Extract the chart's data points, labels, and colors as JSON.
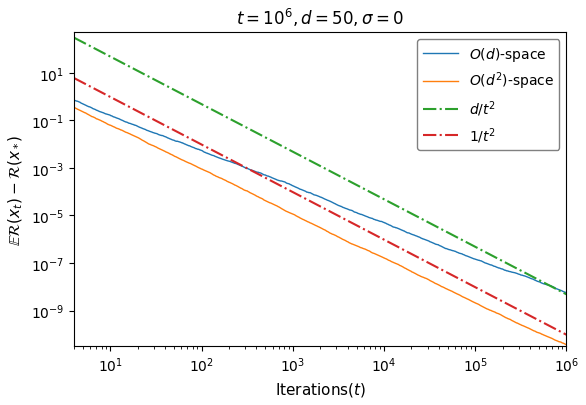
{
  "title": "$t = 10^6, d = 50, \\sigma = 0$",
  "xlabel": "Iterations$(t)$",
  "ylabel": "$\\mathbb{E}\\mathcal{R}(x_t) - \\mathcal{R}(x_*)$",
  "xlim_log": [
    0.602,
    6.0
  ],
  "ylim_log": [
    -10.5,
    2.7
  ],
  "d": 50,
  "t_max": 1000000,
  "t_start": 4,
  "n_points": 1000,
  "blue_color": "#1f77b4",
  "orange_color": "#ff7f0e",
  "green_color": "#2ca02c",
  "red_color": "#d62728",
  "noise_seed_blue": 42,
  "noise_seed_orange": 7,
  "noise_amplitude_blue": 0.3,
  "noise_amplitude_orange": 0.25,
  "C_green": 4800.0,
  "C_red": 96.0,
  "legend_labels": [
    "$O(d)$-space",
    "$O(d^2)$-space",
    "$d/t^2$",
    "$1/t^2$"
  ],
  "figsize": [
    5.86,
    4.06
  ],
  "dpi": 100
}
